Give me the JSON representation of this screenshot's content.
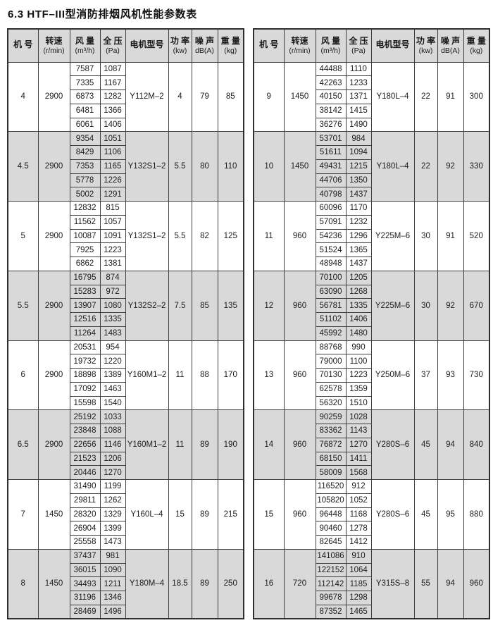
{
  "page": {
    "title": "6.3 HTF–III型消防排烟风机性能参数表"
  },
  "columns": [
    {
      "key": "size",
      "label": "机 号",
      "sub": ""
    },
    {
      "key": "speed",
      "label": "转速",
      "sub": "(r/min)"
    },
    {
      "key": "flow",
      "label": "风 量",
      "sub": "(m³/h)"
    },
    {
      "key": "pressure",
      "label": "全 压",
      "sub": "(Pa)"
    },
    {
      "key": "motor",
      "label": "电机型号",
      "sub": ""
    },
    {
      "key": "power",
      "label": "功 率",
      "sub": "(kw)"
    },
    {
      "key": "noise",
      "label": "噪 声",
      "sub": "dB(A)"
    },
    {
      "key": "weight",
      "label": "重 量",
      "sub": "(kg)"
    }
  ],
  "left_table": {
    "groups": [
      {
        "size": "4",
        "speed": "2900",
        "motor": "Y112M–2",
        "power": "4",
        "noise": "79",
        "weight": "85",
        "rows": [
          [
            "7587",
            "1087"
          ],
          [
            "7335",
            "1167"
          ],
          [
            "6873",
            "1282"
          ],
          [
            "6481",
            "1366"
          ],
          [
            "6061",
            "1406"
          ]
        ]
      },
      {
        "size": "4.5",
        "speed": "2900",
        "motor": "Y132S1–2",
        "power": "5.5",
        "noise": "80",
        "weight": "110",
        "rows": [
          [
            "9354",
            "1051"
          ],
          [
            "8429",
            "1106"
          ],
          [
            "7353",
            "1165"
          ],
          [
            "5778",
            "1226"
          ],
          [
            "5002",
            "1291"
          ]
        ]
      },
      {
        "size": "5",
        "speed": "2900",
        "motor": "Y132S1–2",
        "power": "5.5",
        "noise": "82",
        "weight": "125",
        "rows": [
          [
            "12832",
            "815"
          ],
          [
            "11562",
            "1057"
          ],
          [
            "10087",
            "1091"
          ],
          [
            "7925",
            "1223"
          ],
          [
            "6862",
            "1381"
          ]
        ]
      },
      {
        "size": "5.5",
        "speed": "2900",
        "motor": "Y132S2–2",
        "power": "7.5",
        "noise": "85",
        "weight": "135",
        "rows": [
          [
            "16795",
            "874"
          ],
          [
            "15283",
            "972"
          ],
          [
            "13907",
            "1080"
          ],
          [
            "12516",
            "1335"
          ],
          [
            "11264",
            "1483"
          ]
        ]
      },
      {
        "size": "6",
        "speed": "2900",
        "motor": "Y160M1–2",
        "power": "11",
        "noise": "88",
        "weight": "170",
        "rows": [
          [
            "20531",
            "954"
          ],
          [
            "19732",
            "1220"
          ],
          [
            "18898",
            "1389"
          ],
          [
            "17092",
            "1463"
          ],
          [
            "15598",
            "1540"
          ]
        ]
      },
      {
        "size": "6.5",
        "speed": "2900",
        "motor": "Y160M1–2",
        "power": "11",
        "noise": "89",
        "weight": "190",
        "rows": [
          [
            "25192",
            "1033"
          ],
          [
            "23848",
            "1088"
          ],
          [
            "22656",
            "1146"
          ],
          [
            "21523",
            "1206"
          ],
          [
            "20446",
            "1270"
          ]
        ]
      },
      {
        "size": "7",
        "speed": "1450",
        "motor": "Y160L–4",
        "power": "15",
        "noise": "89",
        "weight": "215",
        "rows": [
          [
            "31490",
            "1199"
          ],
          [
            "29811",
            "1262"
          ],
          [
            "28320",
            "1329"
          ],
          [
            "26904",
            "1399"
          ],
          [
            "25558",
            "1473"
          ]
        ]
      },
      {
        "size": "8",
        "speed": "1450",
        "motor": "Y180M–4",
        "power": "18.5",
        "noise": "89",
        "weight": "250",
        "rows": [
          [
            "37437",
            "981"
          ],
          [
            "36015",
            "1090"
          ],
          [
            "34493",
            "1211"
          ],
          [
            "31196",
            "1346"
          ],
          [
            "28469",
            "1496"
          ]
        ]
      }
    ]
  },
  "right_table": {
    "groups": [
      {
        "size": "9",
        "speed": "1450",
        "motor": "Y180L–4",
        "power": "22",
        "noise": "91",
        "weight": "300",
        "rows": [
          [
            "44488",
            "1110"
          ],
          [
            "42263",
            "1233"
          ],
          [
            "40150",
            "1371"
          ],
          [
            "38142",
            "1415"
          ],
          [
            "36276",
            "1490"
          ]
        ]
      },
      {
        "size": "10",
        "speed": "1450",
        "motor": "Y180L–4",
        "power": "22",
        "noise": "92",
        "weight": "330",
        "rows": [
          [
            "53701",
            "984"
          ],
          [
            "51611",
            "1094"
          ],
          [
            "49431",
            "1215"
          ],
          [
            "44706",
            "1350"
          ],
          [
            "40798",
            "1437"
          ]
        ]
      },
      {
        "size": "11",
        "speed": "960",
        "motor": "Y225M–6",
        "power": "30",
        "noise": "91",
        "weight": "520",
        "rows": [
          [
            "60096",
            "1170"
          ],
          [
            "57091",
            "1232"
          ],
          [
            "54236",
            "1296"
          ],
          [
            "51524",
            "1365"
          ],
          [
            "48948",
            "1437"
          ]
        ]
      },
      {
        "size": "12",
        "speed": "960",
        "motor": "Y225M–6",
        "power": "30",
        "noise": "92",
        "weight": "670",
        "rows": [
          [
            "70100",
            "1205"
          ],
          [
            "63090",
            "1268"
          ],
          [
            "56781",
            "1335"
          ],
          [
            "51102",
            "1406"
          ],
          [
            "45992",
            "1480"
          ]
        ]
      },
      {
        "size": "13",
        "speed": "960",
        "motor": "Y250M–6",
        "power": "37",
        "noise": "93",
        "weight": "730",
        "rows": [
          [
            "88768",
            "990"
          ],
          [
            "79000",
            "1100"
          ],
          [
            "70130",
            "1223"
          ],
          [
            "62578",
            "1359"
          ],
          [
            "56320",
            "1510"
          ]
        ]
      },
      {
        "size": "14",
        "speed": "960",
        "motor": "Y280S–6",
        "power": "45",
        "noise": "94",
        "weight": "840",
        "rows": [
          [
            "90259",
            "1028"
          ],
          [
            "83362",
            "1143"
          ],
          [
            "76872",
            "1270"
          ],
          [
            "68150",
            "1411"
          ],
          [
            "58009",
            "1568"
          ]
        ]
      },
      {
        "size": "15",
        "speed": "960",
        "motor": "Y280S–6",
        "power": "45",
        "noise": "95",
        "weight": "880",
        "rows": [
          [
            "116520",
            "912"
          ],
          [
            "105820",
            "1052"
          ],
          [
            "96448",
            "1168"
          ],
          [
            "90460",
            "1278"
          ],
          [
            "82645",
            "1412"
          ]
        ]
      },
      {
        "size": "16",
        "speed": "720",
        "motor": "Y315S–8",
        "power": "55",
        "noise": "94",
        "weight": "960",
        "rows": [
          [
            "141086",
            "910"
          ],
          [
            "122152",
            "1064"
          ],
          [
            "112142",
            "1185"
          ],
          [
            "99678",
            "1298"
          ],
          [
            "87352",
            "1465"
          ]
        ]
      }
    ]
  }
}
